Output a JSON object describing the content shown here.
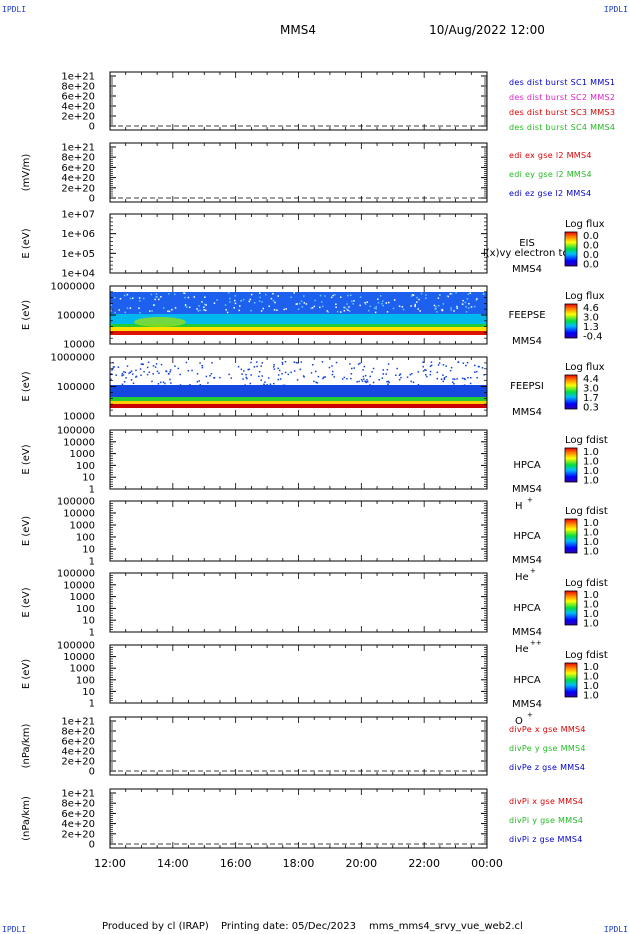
{
  "header": {
    "corner_label": "IPDLI",
    "spacecraft": "MMS4",
    "datetime": "10/Aug/2022 12:00"
  },
  "footer": {
    "produced_by": "Produced by cl (IRAP)",
    "printing_date": "Printing date: 05/Dec/2023",
    "script_name": "mms_mms4_srvy_vue_web2.cl"
  },
  "colors": {
    "blue": "#0000cc",
    "magenta": "#dd22cc",
    "red": "#dd0000",
    "green": "#22bb22",
    "axis": "#000000"
  },
  "chart_data": [
    {
      "type": "line",
      "panel": "des-dist",
      "ylabel": "",
      "yticks": [
        "1e+21",
        "8e+20",
        "6e+20",
        "4e+20",
        "2e+20",
        "0"
      ],
      "ylim": [
        0,
        1e+21
      ],
      "series": [
        {
          "name": "des dist burst SC1 MMS1",
          "color": "#0000cc",
          "values": [
            0,
            0
          ]
        },
        {
          "name": "des dist burst SC2 MMS2",
          "color": "#dd22cc",
          "values": [
            0,
            0
          ]
        },
        {
          "name": "des dist burst SC3 MMS3",
          "color": "#dd0000",
          "values": [
            0,
            0
          ]
        },
        {
          "name": "des dist burst SC4 MMS4",
          "color": "#22bb22",
          "values": [
            0,
            0
          ]
        }
      ]
    },
    {
      "type": "line",
      "panel": "edi-e",
      "ylabel": "(mV/m)",
      "yticks": [
        "1e+21",
        "8e+20",
        "6e+20",
        "4e+20",
        "2e+20",
        "0"
      ],
      "ylim": [
        0,
        1e+21
      ],
      "series": [
        {
          "name": "edi ex gse l2 MMS4",
          "color": "#dd0000",
          "values": [
            0,
            0
          ]
        },
        {
          "name": "edi ey gse l2 MMS4",
          "color": "#22bb22",
          "values": [
            0,
            0
          ]
        },
        {
          "name": "edi ez gse l2 MMS4",
          "color": "#0000cc",
          "values": [
            0,
            0
          ]
        }
      ]
    },
    {
      "type": "heatmap",
      "panel": "eis",
      "ylabel": "E (eV)",
      "yticks": [
        "1e+07",
        "1e+06",
        "1e+05",
        "1e+04"
      ],
      "yscale": "log",
      "ylim": [
        10000,
        10000000
      ],
      "labels": [
        "EIS",
        "MMS4"
      ],
      "overlay_text": "l(x)vy electron to",
      "colorbar": {
        "title": "Log flux",
        "ticks": [
          "0.0",
          "0.0",
          "0.0",
          "0.0"
        ]
      },
      "fill": "none"
    },
    {
      "type": "heatmap",
      "panel": "feepse",
      "ylabel": "E (eV)",
      "yticks": [
        "1000000",
        "100000",
        "10000"
      ],
      "yscale": "log",
      "ylim": [
        10000,
        1000000
      ],
      "labels": [
        "FEEPSE",
        "MMS4"
      ],
      "colorbar": {
        "title": "Log flux",
        "ticks": [
          "4.6",
          "3.0",
          "1.3",
          "-0.4"
        ]
      },
      "fill": "electron-spectrum"
    },
    {
      "type": "heatmap",
      "panel": "feepsi",
      "ylabel": "E (eV)",
      "yticks": [
        "1000000",
        "100000",
        "10000"
      ],
      "yscale": "log",
      "ylim": [
        10000,
        1000000
      ],
      "labels": [
        "FEEPSI",
        "MMS4"
      ],
      "colorbar": {
        "title": "Log flux",
        "ticks": [
          "4.4",
          "3.0",
          "1.7",
          "0.3"
        ]
      },
      "fill": "ion-spectrum"
    },
    {
      "type": "heatmap",
      "panel": "hpca-h",
      "ylabel": "E (eV)",
      "yticks": [
        "100000",
        "10000",
        "1000",
        "100",
        "10",
        "1"
      ],
      "yscale": "log",
      "ylim": [
        1,
        100000
      ],
      "labels": [
        "HPCA",
        "MMS4"
      ],
      "species": "H",
      "species_charge": "+",
      "colorbar": {
        "title": "Log fdist",
        "ticks": [
          "1.0",
          "1.0",
          "1.0",
          "1.0"
        ]
      },
      "fill": "none"
    },
    {
      "type": "heatmap",
      "panel": "hpca-he1",
      "ylabel": "E (eV)",
      "yticks": [
        "100000",
        "10000",
        "1000",
        "100",
        "10",
        "1"
      ],
      "yscale": "log",
      "ylim": [
        1,
        100000
      ],
      "labels": [
        "HPCA",
        "MMS4"
      ],
      "species": "He",
      "species_charge": "+",
      "colorbar": {
        "title": "Log fdist",
        "ticks": [
          "1.0",
          "1.0",
          "1.0",
          "1.0"
        ]
      },
      "fill": "none"
    },
    {
      "type": "heatmap",
      "panel": "hpca-he2",
      "ylabel": "E (eV)",
      "yticks": [
        "100000",
        "10000",
        "1000",
        "100",
        "10",
        "1"
      ],
      "yscale": "log",
      "ylim": [
        1,
        100000
      ],
      "labels": [
        "HPCA",
        "MMS4"
      ],
      "species": "He",
      "species_charge": "++",
      "colorbar": {
        "title": "Log fdist",
        "ticks": [
          "1.0",
          "1.0",
          "1.0",
          "1.0"
        ]
      },
      "fill": "none"
    },
    {
      "type": "heatmap",
      "panel": "hpca-o",
      "ylabel": "E (eV)",
      "yticks": [
        "100000",
        "10000",
        "1000",
        "100",
        "10",
        "1"
      ],
      "yscale": "log",
      "ylim": [
        1,
        100000
      ],
      "labels": [
        "HPCA",
        "MMS4"
      ],
      "species": "O",
      "species_charge": "+",
      "colorbar": {
        "title": "Log fdist",
        "ticks": [
          "1.0",
          "1.0",
          "1.0",
          "1.0"
        ]
      },
      "fill": "none"
    },
    {
      "type": "line",
      "panel": "divpe",
      "ylabel": "(nPa/km)",
      "yticks": [
        "1e+21",
        "8e+20",
        "6e+20",
        "4e+20",
        "2e+20",
        "0"
      ],
      "ylim": [
        0,
        1e+21
      ],
      "series": [
        {
          "name": "divPe x gse MMS4",
          "color": "#dd0000",
          "values": [
            0,
            0
          ]
        },
        {
          "name": "divPe y gse MMS4",
          "color": "#22bb22",
          "values": [
            0,
            0
          ]
        },
        {
          "name": "divPe z gse MMS4",
          "color": "#0000cc",
          "values": [
            0,
            0
          ]
        }
      ]
    },
    {
      "type": "line",
      "panel": "divpi",
      "ylabel": "(nPa/km)",
      "yticks": [
        "1e+21",
        "8e+20",
        "6e+20",
        "4e+20",
        "2e+20",
        "0"
      ],
      "ylim": [
        0,
        1e+21
      ],
      "series": [
        {
          "name": "divPi x gse MMS4",
          "color": "#dd0000",
          "values": [
            0,
            0
          ]
        },
        {
          "name": "divPi y gse MMS4",
          "color": "#22bb22",
          "values": [
            0,
            0
          ]
        },
        {
          "name": "divPi z gse MMS4",
          "color": "#0000cc",
          "values": [
            0,
            0
          ]
        }
      ]
    }
  ],
  "x_axis": {
    "xlim": [
      "12:00",
      "00:00"
    ],
    "ticks": [
      "12:00",
      "14:00",
      "16:00",
      "18:00",
      "20:00",
      "22:00",
      "00:00"
    ]
  }
}
